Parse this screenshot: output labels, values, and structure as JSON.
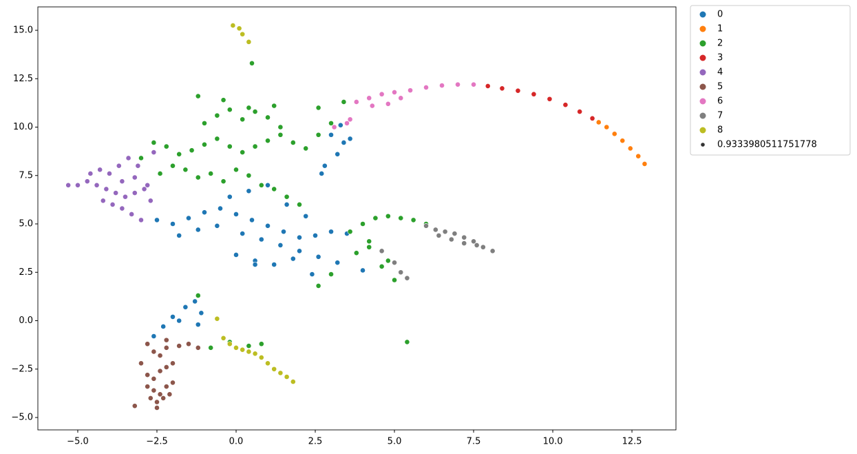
{
  "chart_data": {
    "type": "scatter",
    "xlim": [
      -6.26,
      13.89
    ],
    "ylim": [
      -5.64,
      16.21
    ],
    "xticks": [
      {
        "value": -5,
        "label": "−5.0"
      },
      {
        "value": -2.5,
        "label": "−2.5"
      },
      {
        "value": 0,
        "label": "0.0"
      },
      {
        "value": 2.5,
        "label": "2.5"
      },
      {
        "value": 5,
        "label": "5.0"
      },
      {
        "value": 7.5,
        "label": "7.5"
      },
      {
        "value": 10,
        "label": "10.0"
      },
      {
        "value": 12.5,
        "label": "12.5"
      }
    ],
    "yticks": [
      {
        "value": -5,
        "label": "−5.0"
      },
      {
        "value": -2.5,
        "label": "−2.5"
      },
      {
        "value": 0,
        "label": "0.0"
      },
      {
        "value": 2.5,
        "label": "2.5"
      },
      {
        "value": 5,
        "label": "5.0"
      },
      {
        "value": 7.5,
        "label": "7.5"
      },
      {
        "value": 10,
        "label": "10.0"
      },
      {
        "value": 12.5,
        "label": "12.5"
      },
      {
        "value": 15,
        "label": "15.0"
      }
    ],
    "legend": "upper-right-outside",
    "size_value": 0.9333980511751778,
    "series": [
      {
        "name": "0",
        "color": "#1f77b4",
        "x": [
          -2.5,
          -2.0,
          -1.5,
          -1.0,
          -0.5,
          0.0,
          0.5,
          1.0,
          1.5,
          2.0,
          2.5,
          3.0,
          3.5,
          4.0,
          -1.8,
          -1.2,
          -0.6,
          0.2,
          0.8,
          1.4,
          2.0,
          2.6,
          3.2,
          0.0,
          0.6,
          1.2,
          1.8,
          2.4,
          -0.2,
          0.4,
          1.0,
          1.6,
          2.2,
          2.8,
          3.2,
          3.4,
          3.0,
          3.6,
          2.7,
          3.3,
          -2.6,
          -2.3,
          -2.0,
          -1.6,
          -1.3,
          -1.1,
          -2.2,
          -1.8,
          -2.8,
          0.4,
          -1.2,
          0.6
        ],
        "y": [
          5.2,
          5.0,
          5.3,
          5.6,
          5.8,
          5.5,
          5.2,
          4.9,
          4.6,
          4.3,
          4.4,
          4.6,
          4.5,
          2.6,
          4.4,
          4.7,
          4.9,
          4.5,
          4.2,
          3.9,
          3.6,
          3.3,
          3.0,
          3.4,
          3.1,
          2.9,
          3.2,
          2.4,
          6.4,
          6.7,
          7.0,
          6.0,
          5.4,
          8.0,
          8.6,
          9.2,
          9.6,
          9.4,
          7.6,
          10.1,
          -0.8,
          -0.3,
          0.2,
          0.7,
          1.0,
          0.4,
          -1.0,
          0.0,
          -1.2,
          14.4,
          -0.2,
          2.9
        ]
      },
      {
        "name": "1",
        "color": "#ff7f0e",
        "x": [
          11.45,
          11.7,
          11.95,
          12.2,
          12.45,
          12.7,
          12.9
        ],
        "y": [
          10.25,
          10.0,
          9.65,
          9.3,
          8.9,
          8.5,
          8.1
        ]
      },
      {
        "name": "2",
        "color": "#2ca02c",
        "x": [
          -3.0,
          -2.6,
          -2.2,
          -1.8,
          -1.4,
          -1.0,
          -0.6,
          -0.2,
          0.2,
          0.6,
          1.0,
          1.4,
          1.8,
          2.2,
          2.6,
          3.0,
          3.4,
          -2.4,
          -2.0,
          -1.6,
          -1.2,
          -0.8,
          -0.4,
          0.0,
          0.4,
          0.8,
          1.2,
          1.6,
          2.0,
          -1.0,
          -0.6,
          -0.2,
          0.2,
          0.6,
          1.0,
          1.4,
          -1.2,
          -0.4,
          0.4,
          1.2,
          2.6,
          3.6,
          4.0,
          4.4,
          4.8,
          5.2,
          5.6,
          6.0,
          3.8,
          4.2,
          4.6,
          5.0,
          3.0,
          2.6,
          4.2,
          4.8,
          -0.8,
          -0.2,
          0.4,
          0.8,
          5.4,
          0.5,
          -1.2
        ],
        "y": [
          8.4,
          9.2,
          9.0,
          8.6,
          8.8,
          9.1,
          9.4,
          9.0,
          8.7,
          9.0,
          9.3,
          9.6,
          9.2,
          8.9,
          9.6,
          10.2,
          11.3,
          7.6,
          8.0,
          7.8,
          7.4,
          7.6,
          7.2,
          7.8,
          7.5,
          7.0,
          6.8,
          6.4,
          6.0,
          10.2,
          10.6,
          10.9,
          10.4,
          10.8,
          10.5,
          10.0,
          11.6,
          11.4,
          11.0,
          11.1,
          11.0,
          4.6,
          5.0,
          5.3,
          5.4,
          5.3,
          5.2,
          5.0,
          3.5,
          3.8,
          2.8,
          2.1,
          2.4,
          1.8,
          4.1,
          3.1,
          -1.4,
          -1.1,
          -1.3,
          -1.2,
          -1.1,
          13.3,
          1.3
        ]
      },
      {
        "name": "3",
        "color": "#d62728",
        "x": [
          7.95,
          8.4,
          8.9,
          9.4,
          9.9,
          10.4,
          10.85,
          11.25
        ],
        "y": [
          12.12,
          12.0,
          11.88,
          11.7,
          11.45,
          11.15,
          10.8,
          10.45
        ]
      },
      {
        "name": "4",
        "color": "#9467bd",
        "x": [
          -5.3,
          -5.0,
          -4.7,
          -4.4,
          -4.1,
          -3.8,
          -3.5,
          -3.2,
          -2.9,
          -4.6,
          -4.3,
          -4.0,
          -3.7,
          -3.4,
          -3.1,
          -4.2,
          -3.9,
          -3.6,
          -3.3,
          -3.0,
          -2.7,
          -3.6,
          -3.2,
          -2.8,
          -2.6
        ],
        "y": [
          7.0,
          7.0,
          7.2,
          7.0,
          6.8,
          6.6,
          6.4,
          6.6,
          6.8,
          7.6,
          7.8,
          7.6,
          8.0,
          8.4,
          8.0,
          6.2,
          6.0,
          5.8,
          5.5,
          5.2,
          6.2,
          7.2,
          7.4,
          7.0,
          8.7
        ]
      },
      {
        "name": "5",
        "color": "#8c564b",
        "x": [
          -3.0,
          -2.8,
          -2.6,
          -2.4,
          -2.2,
          -2.0,
          -2.8,
          -2.6,
          -2.4,
          -2.2,
          -2.0,
          -2.7,
          -2.5,
          -2.3,
          -2.1,
          -2.6,
          -2.4,
          -2.2,
          -2.8,
          -2.5,
          -1.8,
          -1.5,
          -1.2,
          -3.2,
          -2.2
        ],
        "y": [
          -2.2,
          -2.8,
          -3.0,
          -2.6,
          -2.4,
          -2.2,
          -3.4,
          -3.6,
          -3.8,
          -3.4,
          -3.2,
          -4.0,
          -4.2,
          -4.0,
          -3.8,
          -1.6,
          -1.8,
          -1.4,
          -1.2,
          -4.5,
          -1.3,
          -1.2,
          -1.4,
          -4.4,
          -1.0
        ]
      },
      {
        "name": "6",
        "color": "#e377c2",
        "x": [
          3.6,
          3.8,
          4.2,
          4.6,
          5.0,
          5.5,
          6.0,
          6.5,
          7.0,
          7.5,
          4.3,
          3.5,
          5.2,
          4.8,
          3.1
        ],
        "y": [
          10.4,
          11.3,
          11.5,
          11.7,
          11.8,
          11.9,
          12.05,
          12.15,
          12.2,
          12.2,
          11.1,
          10.2,
          11.5,
          11.2,
          10.0
        ]
      },
      {
        "name": "7",
        "color": "#7f7f7f",
        "x": [
          6.0,
          6.3,
          6.6,
          6.9,
          7.2,
          7.5,
          7.8,
          8.1,
          6.4,
          6.8,
          7.2,
          7.6,
          5.2,
          5.4,
          5.0,
          4.6
        ],
        "y": [
          4.9,
          4.7,
          4.6,
          4.5,
          4.3,
          4.1,
          3.8,
          3.6,
          4.4,
          4.2,
          4.0,
          3.9,
          2.5,
          2.2,
          3.0,
          3.6
        ]
      },
      {
        "name": "8",
        "color": "#bcbd22",
        "x": [
          -0.4,
          -0.2,
          0.0,
          0.2,
          0.4,
          0.6,
          0.8,
          1.0,
          1.2,
          1.4,
          1.6,
          1.8,
          -0.6,
          0.1,
          -0.1,
          0.2,
          0.4
        ],
        "y": [
          -0.9,
          -1.2,
          -1.4,
          -1.5,
          -1.6,
          -1.7,
          -1.9,
          -2.2,
          -2.5,
          -2.7,
          -2.9,
          -3.15,
          0.1,
          15.1,
          15.25,
          14.8,
          14.4
        ]
      }
    ]
  }
}
